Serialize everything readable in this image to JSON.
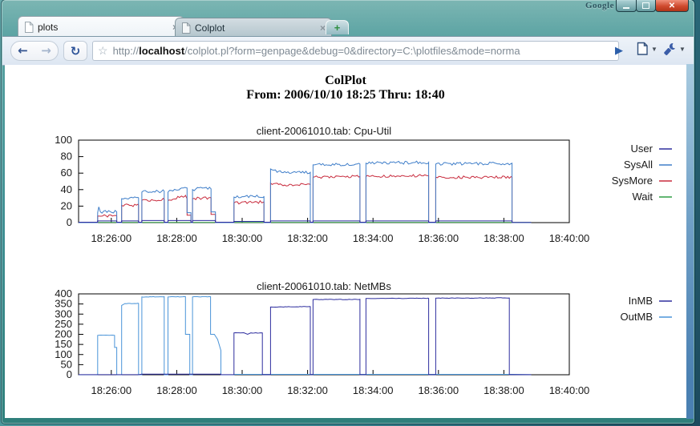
{
  "window": {
    "brand": "Google"
  },
  "tabs": [
    {
      "label": "plots",
      "active": true
    },
    {
      "label": "Colplot",
      "active": false
    }
  ],
  "toolbar": {
    "url_scheme": "http://",
    "url_host": "localhost",
    "url_rest": "/colplot.pl?form=genpage&debug=0&directory=C:\\plotfiles&mode=norma"
  },
  "page": {
    "title": "ColPlot",
    "subtitle": "From: 2006/10/10 18:25 Thru: 18:40"
  },
  "chart_data": [
    {
      "type": "line",
      "title": "client-20061010.tab: Cpu-Util",
      "xlabel": "",
      "ylabel": "",
      "x_unit": "seconds since 18:25:00",
      "x_range": [
        0,
        900
      ],
      "y_range": [
        0,
        100
      ],
      "y_ticks": [
        0,
        20,
        40,
        60,
        80,
        100
      ],
      "x_ticks": [
        {
          "t": 60,
          "label": "18:26:00"
        },
        {
          "t": 180,
          "label": "18:28:00"
        },
        {
          "t": 300,
          "label": "18:30:00"
        },
        {
          "t": 420,
          "label": "18:32:00"
        },
        {
          "t": 540,
          "label": "18:34:00"
        },
        {
          "t": 660,
          "label": "18:36:00"
        },
        {
          "t": 780,
          "label": "18:38:00"
        },
        {
          "t": 900,
          "label": "18:40:00"
        }
      ],
      "grid": false,
      "legend_position": "right-outside",
      "draw_order": [
        3,
        2,
        1,
        0
      ],
      "series": [
        {
          "name": "User",
          "color": "#2d2d9e",
          "jitter": 0.5,
          "points": [
            [
              0,
              0.5
            ],
            [
              35,
              0.5
            ],
            [
              35,
              2
            ],
            [
              70,
              2
            ],
            [
              70,
              0.5
            ],
            [
              79,
              0.5
            ],
            [
              79,
              2
            ],
            [
              110,
              2
            ],
            [
              110,
              0.5
            ],
            [
              116,
              0.5
            ],
            [
              116,
              2.5
            ],
            [
              157,
              2.5
            ],
            [
              157,
              0.5
            ],
            [
              164,
              0.5
            ],
            [
              164,
              2.5
            ],
            [
              206,
              2.5
            ],
            [
              206,
              0.5
            ],
            [
              209,
              0.5
            ],
            [
              209,
              2.5
            ],
            [
              251,
              2.5
            ],
            [
              251,
              0.5
            ],
            [
              285,
              0.5
            ],
            [
              285,
              1.5
            ],
            [
              340,
              1.5
            ],
            [
              340,
              0.5
            ],
            [
              352,
              0.5
            ],
            [
              352,
              2
            ],
            [
              425,
              2
            ],
            [
              425,
              0.5
            ],
            [
              430,
              0.5
            ],
            [
              430,
              2
            ],
            [
              516,
              2
            ],
            [
              516,
              0.5
            ],
            [
              527,
              0.5
            ],
            [
              527,
              2
            ],
            [
              642,
              2
            ],
            [
              642,
              0.5
            ],
            [
              655,
              0.5
            ],
            [
              655,
              2
            ],
            [
              795,
              2
            ],
            [
              795,
              0.3
            ],
            [
              830,
              0.3
            ]
          ]
        },
        {
          "name": "SysAll",
          "color": "#3f7ec9",
          "jitter": 1.8,
          "points": [
            [
              0,
              0
            ],
            [
              35,
              0
            ],
            [
              35,
              12
            ],
            [
              37,
              19
            ],
            [
              40,
              13
            ],
            [
              70,
              13
            ],
            [
              70,
              0
            ],
            [
              79,
              0
            ],
            [
              79,
              29
            ],
            [
              110,
              30
            ],
            [
              110,
              0
            ],
            [
              116,
              0
            ],
            [
              116,
              37
            ],
            [
              157,
              38
            ],
            [
              157,
              0
            ],
            [
              164,
              0
            ],
            [
              164,
              37
            ],
            [
              186,
              41
            ],
            [
              199,
              42
            ],
            [
              199,
              12
            ],
            [
              206,
              12
            ],
            [
              206,
              0
            ],
            [
              209,
              0
            ],
            [
              209,
              40
            ],
            [
              228,
              42
            ],
            [
              243,
              41
            ],
            [
              243,
              13
            ],
            [
              251,
              13
            ],
            [
              251,
              0
            ],
            [
              285,
              0
            ],
            [
              285,
              31
            ],
            [
              340,
              32
            ],
            [
              340,
              0
            ],
            [
              352,
              0
            ],
            [
              352,
              65
            ],
            [
              372,
              61
            ],
            [
              425,
              61
            ],
            [
              425,
              0
            ],
            [
              430,
              0
            ],
            [
              430,
              70
            ],
            [
              516,
              71
            ],
            [
              516,
              0
            ],
            [
              527,
              0
            ],
            [
              527,
              72
            ],
            [
              642,
              73
            ],
            [
              642,
              0
            ],
            [
              655,
              0
            ],
            [
              655,
              71
            ],
            [
              795,
              72
            ],
            [
              795,
              0
            ],
            [
              830,
              0
            ]
          ]
        },
        {
          "name": "SysMore",
          "color": "#c82a3c",
          "jitter": 1.6,
          "points": [
            [
              0,
              0
            ],
            [
              35,
              0
            ],
            [
              35,
              8
            ],
            [
              70,
              8
            ],
            [
              70,
              0
            ],
            [
              79,
              0
            ],
            [
              79,
              21
            ],
            [
              110,
              21
            ],
            [
              110,
              0
            ],
            [
              116,
              0
            ],
            [
              116,
              27
            ],
            [
              157,
              28
            ],
            [
              157,
              0
            ],
            [
              164,
              0
            ],
            [
              164,
              27
            ],
            [
              186,
              31
            ],
            [
              196,
              33
            ],
            [
              199,
              29
            ],
            [
              199,
              9
            ],
            [
              206,
              9
            ],
            [
              206,
              0
            ],
            [
              209,
              0
            ],
            [
              209,
              29
            ],
            [
              243,
              30
            ],
            [
              243,
              10
            ],
            [
              251,
              10
            ],
            [
              251,
              0
            ],
            [
              285,
              0
            ],
            [
              285,
              24
            ],
            [
              340,
              25
            ],
            [
              340,
              0
            ],
            [
              352,
              0
            ],
            [
              352,
              48
            ],
            [
              372,
              46
            ],
            [
              425,
              46
            ],
            [
              425,
              0
            ],
            [
              430,
              0
            ],
            [
              430,
              55
            ],
            [
              516,
              56
            ],
            [
              516,
              0
            ],
            [
              527,
              0
            ],
            [
              527,
              56
            ],
            [
              642,
              57
            ],
            [
              642,
              0
            ],
            [
              655,
              0
            ],
            [
              655,
              55
            ],
            [
              795,
              55
            ],
            [
              795,
              0
            ],
            [
              830,
              0
            ]
          ]
        },
        {
          "name": "Wait",
          "color": "#2f9e44",
          "jitter": 0,
          "points": [
            [
              0,
              0.2
            ],
            [
              830,
              0.2
            ]
          ]
        }
      ]
    },
    {
      "type": "line",
      "title": "client-20061010.tab: NetMBs",
      "xlabel": "",
      "ylabel": "",
      "x_unit": "seconds since 18:25:00",
      "x_range": [
        0,
        900
      ],
      "y_range": [
        0,
        400
      ],
      "y_ticks": [
        0,
        50,
        100,
        150,
        200,
        250,
        300,
        350,
        400
      ],
      "x_ticks": [
        {
          "t": 60,
          "label": "18:26:00"
        },
        {
          "t": 180,
          "label": "18:28:00"
        },
        {
          "t": 300,
          "label": "18:30:00"
        },
        {
          "t": 420,
          "label": "18:32:00"
        },
        {
          "t": 540,
          "label": "18:34:00"
        },
        {
          "t": 660,
          "label": "18:36:00"
        },
        {
          "t": 780,
          "label": "18:38:00"
        },
        {
          "t": 900,
          "label": "18:40:00"
        }
      ],
      "grid": false,
      "legend_position": "right-outside",
      "draw_order": [
        1,
        0
      ],
      "series": [
        {
          "name": "InMB",
          "color": "#2d2d9e",
          "jitter": 1.2,
          "points": [
            [
              0,
              0.5
            ],
            [
              110,
              0.5
            ],
            [
              116,
              3
            ],
            [
              204,
              3
            ],
            [
              209,
              3
            ],
            [
              261,
              3
            ],
            [
              261,
              0.5
            ],
            [
              285,
              0.5
            ],
            [
              285,
              207
            ],
            [
              303,
              208
            ],
            [
              310,
              200
            ],
            [
              316,
              207
            ],
            [
              337,
              207
            ],
            [
              337,
              0.5
            ],
            [
              352,
              0.5
            ],
            [
              352,
              335
            ],
            [
              425,
              337
            ],
            [
              425,
              0.5
            ],
            [
              430,
              0.5
            ],
            [
              430,
              372
            ],
            [
              516,
              373
            ],
            [
              516,
              0.5
            ],
            [
              527,
              0.5
            ],
            [
              527,
              377
            ],
            [
              642,
              378
            ],
            [
              642,
              0.5
            ],
            [
              655,
              0.5
            ],
            [
              655,
              379
            ],
            [
              790,
              380
            ],
            [
              790,
              0.5
            ],
            [
              830,
              0.5
            ]
          ]
        },
        {
          "name": "OutMB",
          "color": "#4a94d8",
          "jitter": 1.2,
          "points": [
            [
              0,
              0
            ],
            [
              35,
              0
            ],
            [
              35,
              195
            ],
            [
              66,
              195
            ],
            [
              66,
              135
            ],
            [
              70,
              135
            ],
            [
              70,
              0
            ],
            [
              79,
              0
            ],
            [
              79,
              343
            ],
            [
              85,
              352
            ],
            [
              110,
              353
            ],
            [
              110,
              0
            ],
            [
              116,
              0
            ],
            [
              116,
              385
            ],
            [
              157,
              386
            ],
            [
              157,
              0
            ],
            [
              164,
              0
            ],
            [
              164,
              385
            ],
            [
              196,
              386
            ],
            [
              196,
              200
            ],
            [
              204,
              200
            ],
            [
              204,
              0
            ],
            [
              209,
              0
            ],
            [
              209,
              385
            ],
            [
              242,
              386
            ],
            [
              242,
              200
            ],
            [
              249,
              200
            ],
            [
              255,
              175
            ],
            [
              261,
              120
            ],
            [
              261,
              0
            ],
            [
              285,
              0
            ],
            [
              285,
              2
            ],
            [
              795,
              2
            ],
            [
              830,
              0.5
            ]
          ]
        }
      ]
    }
  ]
}
